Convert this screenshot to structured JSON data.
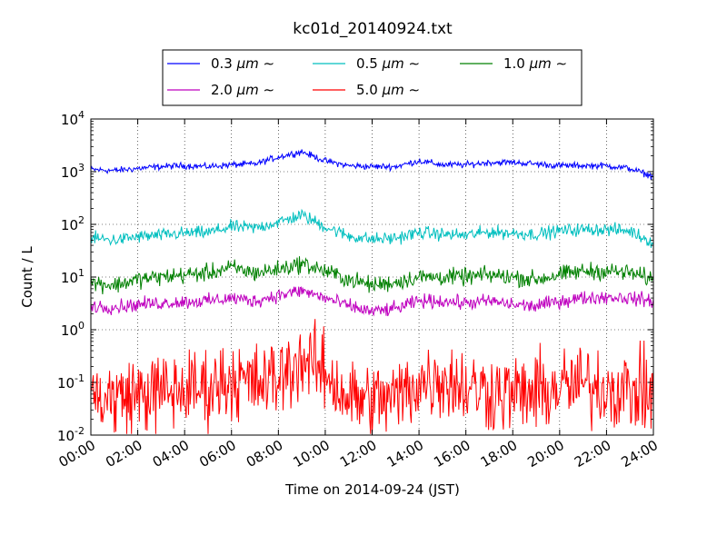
{
  "chart_data": {
    "type": "line",
    "title": "kc01d_20140924.txt",
    "xlabel": "Time on 2014-09-24 (JST)",
    "ylabel": "Count / L",
    "yscale": "log",
    "xlim": [
      "00:00",
      "24:00"
    ],
    "ylim": [
      0.01,
      10000
    ],
    "grid": true,
    "legend": {
      "placement": "top-center",
      "columns": 3
    },
    "x_ticks": [
      "00:00",
      "02:00",
      "04:00",
      "06:00",
      "08:00",
      "10:00",
      "12:00",
      "14:00",
      "16:00",
      "18:00",
      "20:00",
      "22:00",
      "24:00"
    ],
    "y_ticks": [
      {
        "value": 0.01,
        "base": "10",
        "exp": "-2"
      },
      {
        "value": 0.1,
        "base": "10",
        "exp": "-1"
      },
      {
        "value": 1,
        "base": "10",
        "exp": "0"
      },
      {
        "value": 10,
        "base": "10",
        "exp": "1"
      },
      {
        "value": 100,
        "base": "10",
        "exp": "2"
      },
      {
        "value": 1000,
        "base": "10",
        "exp": "3"
      },
      {
        "value": 10000,
        "base": "10",
        "exp": "4"
      }
    ],
    "x": [
      "00:00",
      "01:00",
      "02:00",
      "03:00",
      "04:00",
      "05:00",
      "06:00",
      "07:00",
      "08:00",
      "09:00",
      "10:00",
      "11:00",
      "12:00",
      "13:00",
      "14:00",
      "15:00",
      "16:00",
      "17:00",
      "18:00",
      "19:00",
      "20:00",
      "21:00",
      "22:00",
      "23:00",
      "24:00"
    ],
    "series": [
      {
        "name": "0.3",
        "color": "#0000ff",
        "values": [
          1100,
          1050,
          1150,
          1250,
          1300,
          1250,
          1350,
          1400,
          1900,
          2400,
          1600,
          1300,
          1250,
          1250,
          1600,
          1350,
          1350,
          1500,
          1500,
          1400,
          1300,
          1300,
          1300,
          1150,
          800
        ]
      },
      {
        "name": "0.5",
        "color": "#00bfbf",
        "values": [
          55,
          50,
          58,
          62,
          68,
          70,
          90,
          85,
          110,
          150,
          90,
          60,
          52,
          55,
          70,
          65,
          62,
          72,
          68,
          65,
          75,
          80,
          80,
          75,
          45
        ]
      },
      {
        "name": "1.0",
        "color": "#008000",
        "values": [
          8,
          7,
          9,
          10,
          11,
          12,
          15,
          12,
          14,
          18,
          13,
          9,
          7,
          8,
          10,
          10,
          10,
          11,
          10,
          9,
          11,
          13,
          13,
          12,
          9
        ]
      },
      {
        "name": "2.0",
        "color": "#bf00bf",
        "values": [
          2.8,
          2.7,
          3.0,
          3.2,
          3.4,
          3.5,
          4.0,
          3.5,
          4.5,
          5.5,
          4.0,
          2.8,
          2.2,
          2.5,
          3.5,
          3.5,
          3.2,
          3.5,
          3.0,
          2.8,
          3.5,
          4.0,
          4.2,
          4.0,
          3.5
        ]
      },
      {
        "name": "5.0",
        "color": "#ff0000",
        "values": [
          0.055,
          0.05,
          0.06,
          0.065,
          0.07,
          0.08,
          0.12,
          0.09,
          0.12,
          0.28,
          0.15,
          0.05,
          0.045,
          0.05,
          0.1,
          0.12,
          0.08,
          0.07,
          0.06,
          0.06,
          0.08,
          0.09,
          0.08,
          0.07,
          0.06
        ]
      }
    ],
    "legend_unit": "μm",
    "legend_suffix": "∼"
  }
}
